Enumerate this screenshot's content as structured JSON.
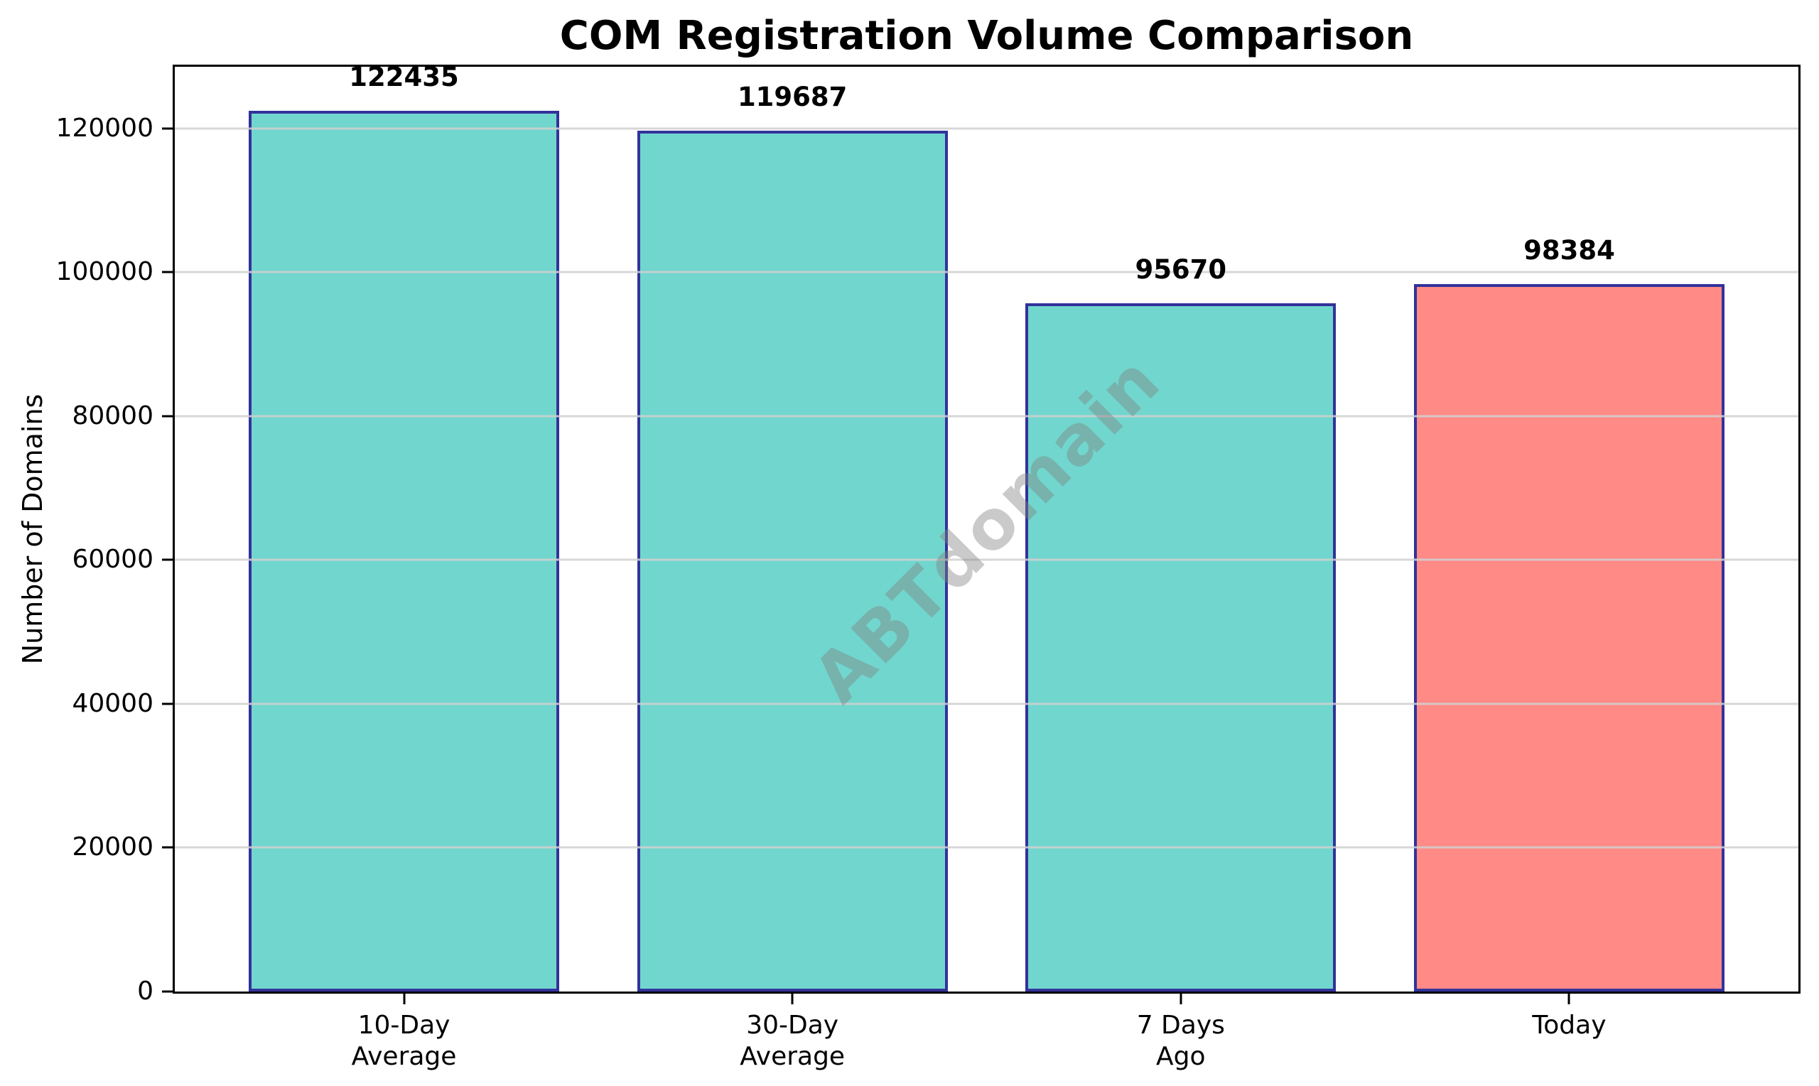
{
  "chart_data": {
    "type": "bar",
    "title": "COM Registration Volume Comparison",
    "xlabel": "",
    "ylabel": "Number of Domains",
    "categories": [
      "10-Day\nAverage",
      "30-Day\nAverage",
      "7 Days\nAgo",
      "Today"
    ],
    "values": [
      122435,
      119687,
      95670,
      98384
    ],
    "bar_labels": [
      "122435",
      "119687",
      "95670",
      "98384"
    ],
    "bar_colors": [
      "#71D6CE",
      "#71D6CE",
      "#71D6CE",
      "#FF8A86"
    ],
    "bar_edge_color": "#32329B",
    "ylim": [
      0,
      128557
    ],
    "yticks": [
      0,
      20000,
      40000,
      60000,
      80000,
      100000,
      120000
    ],
    "ytick_labels": [
      "0",
      "20000",
      "40000",
      "60000",
      "80000",
      "100000",
      "120000"
    ],
    "grid": "horizontal",
    "gridline_color": "rgba(208,208,208,0.85)",
    "legend_position": "none",
    "watermark": "ABTdomain",
    "watermark_color": "rgba(128,128,128,0.42)"
  }
}
